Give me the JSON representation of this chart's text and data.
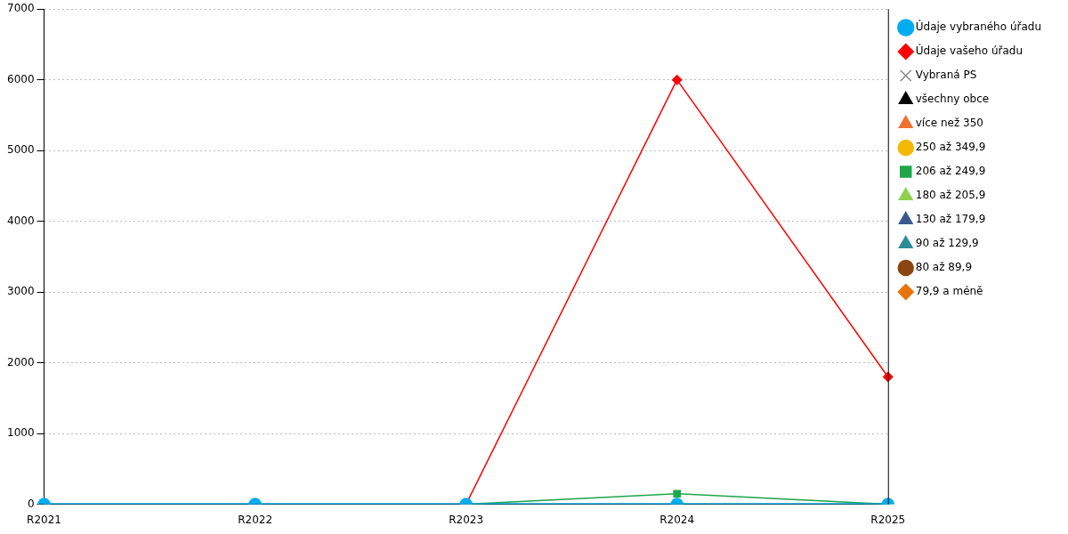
{
  "chart_data": {
    "type": "line",
    "categories": [
      "R2021",
      "R2022",
      "R2023",
      "R2024",
      "R2025"
    ],
    "ylim": [
      0,
      7000
    ],
    "yticks": [
      0,
      1000,
      2000,
      3000,
      4000,
      5000,
      6000,
      7000
    ],
    "grid": "y",
    "legend": "right",
    "line_style": "solid",
    "series": [
      {
        "name": "79,9 a méně",
        "color": "#e8740c",
        "marker": "diamond",
        "values": [
          null,
          null,
          null,
          null,
          null
        ]
      },
      {
        "name": "80 až 89,9",
        "color": "#8b4513",
        "marker": "circle",
        "values": [
          null,
          null,
          null,
          null,
          null
        ]
      },
      {
        "name": "90 až 129,9",
        "color": "#2e8b9a",
        "marker": "triangle",
        "values": [
          null,
          null,
          null,
          null,
          null
        ]
      },
      {
        "name": "130 až 179,9",
        "color": "#3a5a8c",
        "marker": "triangle",
        "values": [
          null,
          null,
          null,
          null,
          null
        ]
      },
      {
        "name": "180 až 205,9",
        "color": "#8fd14f",
        "marker": "triangle",
        "values": [
          null,
          null,
          null,
          null,
          null
        ]
      },
      {
        "name": "206 až 249,9",
        "color": "#1fa64a",
        "marker": "square",
        "values": [
          null,
          null,
          0,
          150,
          0
        ]
      },
      {
        "name": "250 až 349,9",
        "color": "#f5b800",
        "marker": "circle",
        "values": [
          null,
          null,
          null,
          null,
          null
        ]
      },
      {
        "name": "více než 350",
        "color": "#f07030",
        "marker": "triangle",
        "values": [
          null,
          null,
          null,
          null,
          null
        ]
      },
      {
        "name": "všechny obce",
        "color": "#000000",
        "marker": "triangle",
        "values": [
          null,
          null,
          null,
          null,
          null
        ]
      },
      {
        "name": "Vybraná PS",
        "color": "#888888",
        "marker": "cross",
        "values": [
          null,
          null,
          null,
          null,
          null
        ]
      },
      {
        "name": "Údaje vašeho úřadu",
        "color": "#ff0000",
        "marker": "diamond",
        "values": [
          null,
          null,
          0,
          6000,
          1800
        ]
      },
      {
        "name": "Údaje vybraného úřadu",
        "color": "#00aeef",
        "marker": "circle",
        "values": [
          0,
          0,
          0,
          0,
          0
        ]
      }
    ]
  }
}
